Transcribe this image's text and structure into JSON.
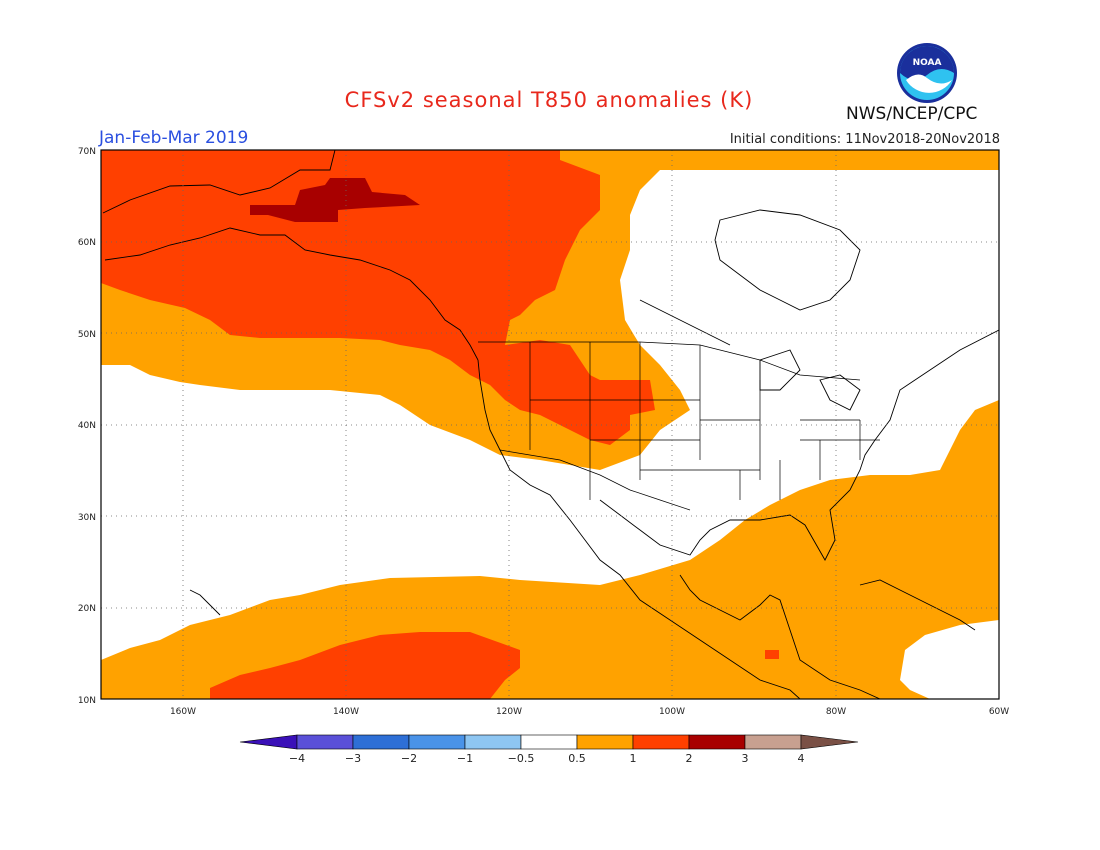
{
  "header": {
    "title": "CFSv2 seasonal T850 anomalies (K)",
    "season": "Jan-Feb-Mar 2019",
    "initial_conditions": "Initial conditions: 11Nov2018-20Nov2018",
    "agency": "NWS/NCEP/CPC",
    "logo_text": "NOAA"
  },
  "map": {
    "lon_range": [
      -170,
      -60
    ],
    "lat_range": [
      10,
      70
    ],
    "lat_labels": [
      "10N",
      "20N",
      "30N",
      "40N",
      "50N",
      "60N",
      "70N"
    ],
    "lon_labels": [
      "160W",
      "140W",
      "120W",
      "100W",
      "80W",
      "60W"
    ],
    "grid": "dotted"
  },
  "colorbar": {
    "ticks": [
      "-4",
      "-3",
      "-2",
      "-1",
      "-0.5",
      "0.5",
      "1",
      "2",
      "3",
      "4"
    ],
    "colors": [
      "#3a10b8",
      "#5a50d8",
      "#2e6fd6",
      "#4a93e8",
      "#8ec6f2",
      "#ffffff",
      "#ffa200",
      "#ff4000",
      "#a80000",
      "#c8a090",
      "#7a5045"
    ]
  },
  "chart_data": {
    "type": "heatmap",
    "title": "CFSv2 seasonal T850 anomalies (K)",
    "subtitle": "Jan-Feb-Mar 2019",
    "units": "K",
    "levels": [
      -4,
      -3,
      -2,
      -1,
      -0.5,
      0.5,
      1,
      2,
      3,
      4
    ],
    "regions": [
      {
        "category": "1 to 2",
        "description": "Alaska, Yukon, Gulf of Alaska, northern Rockies, southern Pacific band near 15N"
      },
      {
        "category": "2 to 3",
        "description": "interior Alaska near 64N"
      },
      {
        "category": "0.5 to 1",
        "description": "North Pacific belt, western Canada fringe, western US, Gulf of Mexico, Caribbean, western Atlantic"
      },
      {
        "category": "-0.5 to 0.5",
        "description": "central Canada, central/eastern US, eastern Pacific 20N-45N"
      }
    ]
  }
}
